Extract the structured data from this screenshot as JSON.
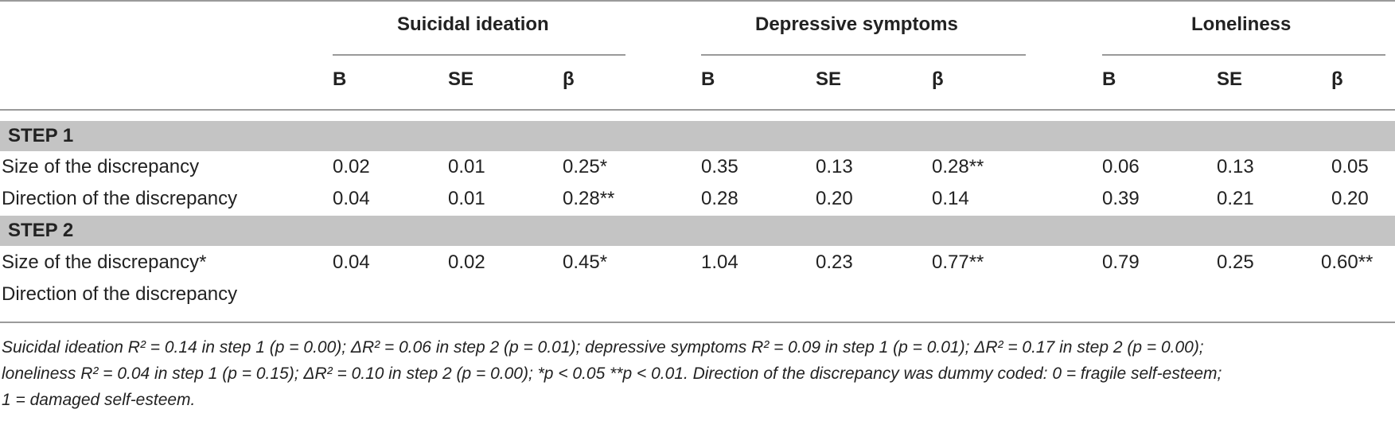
{
  "table": {
    "groups": [
      "Suicidal ideation",
      "Depressive symptoms",
      "Loneliness"
    ],
    "subheaders": [
      "B",
      "SE",
      "β"
    ],
    "steps": [
      {
        "label": "STEP 1",
        "rows": [
          {
            "label": "Size of the discrepancy",
            "values": [
              "0.02",
              "0.01",
              "0.25*",
              "0.35",
              "0.13",
              "0.28**",
              "0.06",
              "0.13",
              "0.05"
            ]
          },
          {
            "label": "Direction of the discrepancy",
            "values": [
              "0.04",
              "0.01",
              "0.28**",
              "0.28",
              "0.20",
              "0.14",
              "0.39",
              "0.21",
              "0.20"
            ]
          }
        ]
      },
      {
        "label": "STEP 2",
        "rows": [
          {
            "label": "Size of the discrepancy*",
            "label2": "Direction of the discrepancy",
            "values": [
              "0.04",
              "0.02",
              "0.45*",
              "1.04",
              "0.23",
              "0.77**",
              "0.79",
              "0.25",
              "0.60**"
            ]
          }
        ]
      }
    ]
  },
  "footnote": {
    "line1": "Suicidal ideation R² = 0.14 in step 1 (p = 0.00); ΔR² = 0.06 in step 2 (p = 0.01); depressive symptoms R² = 0.09 in step 1 (p = 0.01); ΔR² = 0.17 in step 2 (p = 0.00);",
    "line2": "loneliness R² = 0.04 in step 1 (p = 0.15); ΔR² = 0.10 in step 2 (p = 0.00); *p < 0.05 **p < 0.01. Direction of the discrepancy was dummy coded: 0 = fragile self-esteem;",
    "line3": "1 = damaged self-esteem."
  }
}
